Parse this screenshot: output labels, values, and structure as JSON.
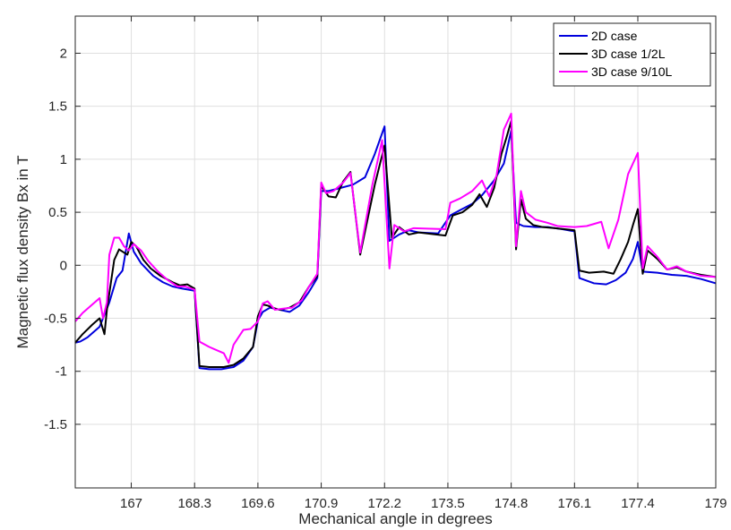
{
  "chart_data": {
    "type": "line",
    "title": "",
    "xlabel": "Mechanical angle in degrees",
    "ylabel": "Magnetic flux density Bx in T",
    "xlim": [
      165.85,
      179
    ],
    "ylim": [
      -2.1,
      2.35
    ],
    "xticks": [
      167,
      168.3,
      169.6,
      170.9,
      172.2,
      173.5,
      174.8,
      176.1,
      177.4,
      179
    ],
    "xtick_labels": [
      "167",
      "168.3",
      "169.6",
      "170.9",
      "172.2",
      "173.5",
      "174.8",
      "176.1",
      "177.4",
      "179"
    ],
    "yticks": [
      -1.5,
      -1,
      -0.5,
      0,
      0.5,
      1,
      1.5,
      2
    ],
    "ytick_labels": [
      "-1.5",
      "-1",
      "-0.5",
      "0",
      "0.5",
      "1",
      "1.5",
      "2"
    ],
    "grid": true,
    "legend_position": "top-right",
    "series": [
      {
        "name": "2D case",
        "color": "#0000dd",
        "points": [
          [
            165.85,
            -0.73
          ],
          [
            165.95,
            -0.72
          ],
          [
            166.1,
            -0.68
          ],
          [
            166.25,
            -0.62
          ],
          [
            166.35,
            -0.58
          ],
          [
            166.55,
            -0.35
          ],
          [
            166.7,
            -0.12
          ],
          [
            166.82,
            -0.05
          ],
          [
            166.95,
            0.3
          ],
          [
            167.05,
            0.13
          ],
          [
            167.2,
            0.02
          ],
          [
            167.45,
            -0.1
          ],
          [
            167.65,
            -0.16
          ],
          [
            167.85,
            -0.2
          ],
          [
            168.05,
            -0.22
          ],
          [
            168.3,
            -0.24
          ],
          [
            168.4,
            -0.97
          ],
          [
            168.6,
            -0.98
          ],
          [
            168.85,
            -0.98
          ],
          [
            169.1,
            -0.96
          ],
          [
            169.3,
            -0.9
          ],
          [
            169.5,
            -0.77
          ],
          [
            169.6,
            -0.52
          ],
          [
            169.7,
            -0.44
          ],
          [
            169.85,
            -0.4
          ],
          [
            170.05,
            -0.42
          ],
          [
            170.25,
            -0.44
          ],
          [
            170.45,
            -0.38
          ],
          [
            170.65,
            -0.25
          ],
          [
            170.82,
            -0.12
          ],
          [
            170.9,
            0.7
          ],
          [
            171.05,
            0.7
          ],
          [
            171.3,
            0.73
          ],
          [
            171.55,
            0.76
          ],
          [
            171.8,
            0.83
          ],
          [
            172.0,
            1.05
          ],
          [
            172.2,
            1.31
          ],
          [
            172.3,
            0.23
          ],
          [
            172.5,
            0.29
          ],
          [
            172.7,
            0.33
          ],
          [
            172.9,
            0.31
          ],
          [
            173.3,
            0.3
          ],
          [
            173.55,
            0.47
          ],
          [
            173.75,
            0.52
          ],
          [
            174.0,
            0.58
          ],
          [
            174.2,
            0.66
          ],
          [
            174.45,
            0.8
          ],
          [
            174.65,
            0.96
          ],
          [
            174.8,
            1.27
          ],
          [
            174.9,
            0.4
          ],
          [
            175.05,
            0.37
          ],
          [
            175.3,
            0.36
          ],
          [
            175.55,
            0.36
          ],
          [
            175.85,
            0.34
          ],
          [
            176.1,
            0.32
          ],
          [
            176.2,
            -0.12
          ],
          [
            176.5,
            -0.17
          ],
          [
            176.75,
            -0.18
          ],
          [
            176.95,
            -0.14
          ],
          [
            177.15,
            -0.07
          ],
          [
            177.3,
            0.06
          ],
          [
            177.4,
            0.22
          ],
          [
            177.5,
            -0.06
          ],
          [
            177.8,
            -0.07
          ],
          [
            178.1,
            -0.09
          ],
          [
            178.4,
            -0.1
          ],
          [
            178.7,
            -0.13
          ],
          [
            179.0,
            -0.17
          ]
        ]
      },
      {
        "name": "3D case 1/2L",
        "color": "#000000",
        "points": [
          [
            165.85,
            -0.73
          ],
          [
            166.0,
            -0.65
          ],
          [
            166.2,
            -0.56
          ],
          [
            166.35,
            -0.5
          ],
          [
            166.45,
            -0.65
          ],
          [
            166.5,
            -0.42
          ],
          [
            166.65,
            0.05
          ],
          [
            166.75,
            0.15
          ],
          [
            166.85,
            0.12
          ],
          [
            166.92,
            0.1
          ],
          [
            167.0,
            0.22
          ],
          [
            167.1,
            0.18
          ],
          [
            167.25,
            0.05
          ],
          [
            167.4,
            -0.03
          ],
          [
            167.6,
            -0.1
          ],
          [
            167.85,
            -0.16
          ],
          [
            168.0,
            -0.19
          ],
          [
            168.15,
            -0.18
          ],
          [
            168.3,
            -0.22
          ],
          [
            168.4,
            -0.95
          ],
          [
            168.6,
            -0.96
          ],
          [
            168.9,
            -0.96
          ],
          [
            169.1,
            -0.94
          ],
          [
            169.3,
            -0.88
          ],
          [
            169.5,
            -0.77
          ],
          [
            169.6,
            -0.48
          ],
          [
            169.7,
            -0.37
          ],
          [
            169.8,
            -0.38
          ],
          [
            169.9,
            -0.4
          ],
          [
            170.05,
            -0.42
          ],
          [
            170.25,
            -0.4
          ],
          [
            170.45,
            -0.35
          ],
          [
            170.65,
            -0.2
          ],
          [
            170.82,
            -0.1
          ],
          [
            170.9,
            0.75
          ],
          [
            171.05,
            0.65
          ],
          [
            171.2,
            0.64
          ],
          [
            171.35,
            0.79
          ],
          [
            171.5,
            0.88
          ],
          [
            171.7,
            0.1
          ],
          [
            172.0,
            0.76
          ],
          [
            172.2,
            1.13
          ],
          [
            172.35,
            0.26
          ],
          [
            172.5,
            0.36
          ],
          [
            172.7,
            0.29
          ],
          [
            172.9,
            0.31
          ],
          [
            173.45,
            0.28
          ],
          [
            173.6,
            0.47
          ],
          [
            173.8,
            0.5
          ],
          [
            174.0,
            0.57
          ],
          [
            174.15,
            0.67
          ],
          [
            174.3,
            0.55
          ],
          [
            174.45,
            0.73
          ],
          [
            174.6,
            1.05
          ],
          [
            174.7,
            1.2
          ],
          [
            174.8,
            1.36
          ],
          [
            174.9,
            0.15
          ],
          [
            175.0,
            0.62
          ],
          [
            175.1,
            0.44
          ],
          [
            175.25,
            0.38
          ],
          [
            175.45,
            0.36
          ],
          [
            175.7,
            0.35
          ],
          [
            176.1,
            0.33
          ],
          [
            176.2,
            -0.05
          ],
          [
            176.4,
            -0.07
          ],
          [
            176.7,
            -0.06
          ],
          [
            176.9,
            -0.08
          ],
          [
            177.05,
            0.06
          ],
          [
            177.2,
            0.22
          ],
          [
            177.3,
            0.38
          ],
          [
            177.4,
            0.53
          ],
          [
            177.5,
            -0.08
          ],
          [
            177.6,
            0.14
          ],
          [
            177.8,
            0.06
          ],
          [
            178.0,
            -0.04
          ],
          [
            178.2,
            -0.02
          ],
          [
            178.4,
            -0.06
          ],
          [
            178.7,
            -0.09
          ],
          [
            179.0,
            -0.11
          ]
        ]
      },
      {
        "name": "3D case 9/10L",
        "color": "#ff00ff",
        "points": [
          [
            165.85,
            -0.53
          ],
          [
            166.0,
            -0.45
          ],
          [
            166.2,
            -0.37
          ],
          [
            166.35,
            -0.31
          ],
          [
            166.42,
            -0.5
          ],
          [
            166.5,
            -0.35
          ],
          [
            166.55,
            0.1
          ],
          [
            166.65,
            0.26
          ],
          [
            166.75,
            0.26
          ],
          [
            166.85,
            0.18
          ],
          [
            166.95,
            0.14
          ],
          [
            167.05,
            0.2
          ],
          [
            167.2,
            0.14
          ],
          [
            167.35,
            0.04
          ],
          [
            167.55,
            -0.06
          ],
          [
            167.75,
            -0.14
          ],
          [
            167.95,
            -0.2
          ],
          [
            168.1,
            -0.2
          ],
          [
            168.3,
            -0.23
          ],
          [
            168.4,
            -0.72
          ],
          [
            168.6,
            -0.77
          ],
          [
            168.75,
            -0.8
          ],
          [
            168.9,
            -0.83
          ],
          [
            169.0,
            -0.92
          ],
          [
            169.1,
            -0.75
          ],
          [
            169.3,
            -0.61
          ],
          [
            169.45,
            -0.6
          ],
          [
            169.6,
            -0.53
          ],
          [
            169.7,
            -0.36
          ],
          [
            169.8,
            -0.34
          ],
          [
            169.95,
            -0.42
          ],
          [
            170.1,
            -0.41
          ],
          [
            170.3,
            -0.4
          ],
          [
            170.5,
            -0.33
          ],
          [
            170.65,
            -0.2
          ],
          [
            170.82,
            -0.08
          ],
          [
            170.9,
            0.78
          ],
          [
            171.0,
            0.68
          ],
          [
            171.15,
            0.7
          ],
          [
            171.35,
            0.78
          ],
          [
            171.5,
            0.87
          ],
          [
            171.7,
            0.12
          ],
          [
            171.95,
            0.76
          ],
          [
            172.15,
            1.18
          ],
          [
            172.3,
            -0.03
          ],
          [
            172.4,
            0.38
          ],
          [
            172.6,
            0.32
          ],
          [
            172.8,
            0.35
          ],
          [
            173.45,
            0.34
          ],
          [
            173.55,
            0.59
          ],
          [
            173.75,
            0.63
          ],
          [
            174.0,
            0.7
          ],
          [
            174.2,
            0.8
          ],
          [
            174.35,
            0.65
          ],
          [
            174.5,
            0.85
          ],
          [
            174.65,
            1.28
          ],
          [
            174.8,
            1.43
          ],
          [
            174.9,
            0.18
          ],
          [
            175.0,
            0.7
          ],
          [
            175.1,
            0.5
          ],
          [
            175.3,
            0.43
          ],
          [
            175.55,
            0.4
          ],
          [
            175.75,
            0.37
          ],
          [
            176.1,
            0.36
          ],
          [
            176.35,
            0.37
          ],
          [
            176.65,
            0.41
          ],
          [
            176.8,
            0.16
          ],
          [
            177.0,
            0.43
          ],
          [
            177.2,
            0.86
          ],
          [
            177.4,
            1.06
          ],
          [
            177.5,
            -0.03
          ],
          [
            177.6,
            0.18
          ],
          [
            177.8,
            0.08
          ],
          [
            178.0,
            -0.04
          ],
          [
            178.2,
            -0.01
          ],
          [
            178.4,
            -0.06
          ],
          [
            178.7,
            -0.1
          ],
          [
            179.0,
            -0.11
          ]
        ]
      }
    ]
  }
}
